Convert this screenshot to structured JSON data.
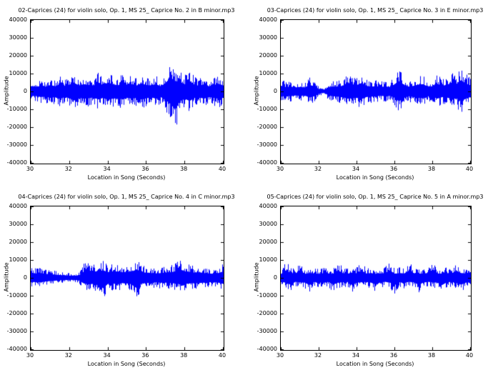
{
  "figure": {
    "background": "#ffffff",
    "axes_edge_color": "#000000",
    "text_color": "#000000"
  },
  "chart_data": [
    {
      "type": "line",
      "title": "02-Caprices (24) for violin solo, Op. 1, MS 25_ Caprice No. 2 in B minor.mp3",
      "xlabel": "Location in Song (Seconds)",
      "ylabel": "Amplitude",
      "xlim": [
        30,
        40
      ],
      "ylim": [
        -40000,
        40000
      ],
      "xticks": [
        30,
        32,
        34,
        36,
        38,
        40
      ],
      "yticks": [
        40000,
        30000,
        20000,
        10000,
        0,
        -10000,
        -20000,
        -30000,
        -40000
      ],
      "xtick_labels": [
        "30",
        "32",
        "34",
        "36",
        "38",
        "40"
      ],
      "ytick_labels": [
        "40000",
        "30000",
        "20000",
        "10000",
        "0",
        "-10000",
        "-20000",
        "-30000",
        "-40000"
      ],
      "grid": false,
      "legend": null,
      "line_color": "#0000ff",
      "envelope": {
        "x_start": 30,
        "x_step": 0.25,
        "pos": [
          6500,
          5500,
          7000,
          6000,
          8000,
          6500,
          9000,
          7000,
          8500,
          10500,
          7500,
          9000,
          8000,
          7500,
          10500,
          8000,
          11000,
          9000,
          7500,
          10000,
          8500,
          9000,
          7500,
          10000,
          8000,
          7500,
          9000,
          6500,
          10500,
          17500,
          13000,
          12000,
          9000,
          13000,
          8500,
          7000,
          9000,
          6500,
          8000,
          9500,
          7500
        ],
        "neg": [
          -6000,
          -5500,
          -7000,
          -6500,
          -8000,
          -7000,
          -9500,
          -7000,
          -8000,
          -10000,
          -8000,
          -9000,
          -8500,
          -7500,
          -10000,
          -8000,
          -10500,
          -9000,
          -8000,
          -10000,
          -8000,
          -9000,
          -8000,
          -10000,
          -8500,
          -7500,
          -9000,
          -7000,
          -11000,
          -15000,
          -23000,
          -12000,
          -9000,
          -12000,
          -8000,
          -7500,
          -9000,
          -7000,
          -8000,
          -9000,
          -8000
        ]
      }
    },
    {
      "type": "line",
      "title": "03-Caprices (24) for violin solo, Op. 1, MS 25_ Caprice No. 3 in E minor.mp3",
      "xlabel": "Location in Song (Seconds)",
      "ylabel": "Amplitude",
      "xlim": [
        30,
        40
      ],
      "ylim": [
        -40000,
        40000
      ],
      "xticks": [
        30,
        32,
        34,
        36,
        38,
        40
      ],
      "yticks": [
        40000,
        30000,
        20000,
        10000,
        0,
        -10000,
        -20000,
        -30000,
        -40000
      ],
      "xtick_labels": [
        "30",
        "32",
        "34",
        "36",
        "38",
        "40"
      ],
      "ytick_labels": [
        "40000",
        "30000",
        "20000",
        "10000",
        "0",
        "-10000",
        "-20000",
        "-30000",
        "-40000"
      ],
      "grid": false,
      "legend": null,
      "line_color": "#0000ff",
      "envelope": {
        "x_start": 30,
        "x_step": 0.25,
        "pos": [
          7000,
          5500,
          6000,
          5000,
          5500,
          5000,
          8000,
          6500,
          3000,
          1200,
          5000,
          6000,
          6000,
          7000,
          11000,
          9000,
          8000,
          10500,
          7000,
          6000,
          6500,
          5500,
          6000,
          5500,
          9000,
          13000,
          8000,
          6000,
          7000,
          8500,
          9000,
          6000,
          6500,
          9500,
          7000,
          8000,
          11000,
          9000,
          14000,
          10000,
          7500
        ],
        "neg": [
          -6500,
          -5500,
          -6000,
          -5000,
          -5500,
          -5000,
          -7500,
          -6000,
          -3000,
          -1200,
          -5000,
          -6000,
          -6500,
          -7000,
          -9000,
          -8500,
          -8000,
          -9500,
          -7000,
          -6500,
          -6000,
          -5500,
          -6000,
          -5500,
          -8000,
          -12000,
          -8000,
          -6000,
          -7000,
          -8000,
          -8500,
          -6000,
          -6500,
          -9000,
          -7000,
          -7500,
          -9500,
          -8500,
          -12500,
          -9000,
          -7000
        ]
      }
    },
    {
      "type": "line",
      "title": "04-Caprices (24) for violin solo, Op. 1, MS 25_ Caprice No. 4 in C minor.mp3",
      "xlabel": "Location in Song (Seconds)",
      "ylabel": "Amplitude",
      "xlim": [
        30,
        40
      ],
      "ylim": [
        -40000,
        40000
      ],
      "xticks": [
        30,
        32,
        34,
        36,
        38,
        40
      ],
      "yticks": [
        40000,
        30000,
        20000,
        10000,
        0,
        -10000,
        -20000,
        -30000,
        -40000
      ],
      "xtick_labels": [
        "30",
        "32",
        "34",
        "36",
        "38",
        "40"
      ],
      "ytick_labels": [
        "40000",
        "30000",
        "20000",
        "10000",
        "0",
        "-10000",
        "-20000",
        "-30000",
        "-40000"
      ],
      "grid": false,
      "legend": null,
      "line_color": "#0000ff",
      "envelope": {
        "x_start": 30,
        "x_step": 0.25,
        "pos": [
          6500,
          5500,
          6000,
          5000,
          4500,
          4000,
          3500,
          3000,
          2800,
          2500,
          3000,
          8000,
          9000,
          8500,
          7500,
          9500,
          7000,
          8000,
          8000,
          7000,
          7500,
          8000,
          10500,
          7000,
          6500,
          6000,
          5500,
          6000,
          6500,
          7000,
          8000,
          10500,
          8000,
          7500,
          6500,
          7000,
          6000,
          5500,
          5000,
          6000,
          8000
        ],
        "neg": [
          -5500,
          -5000,
          -5500,
          -4500,
          -4000,
          -3500,
          -3000,
          -2800,
          -2500,
          -2500,
          -3000,
          -7000,
          -8000,
          -7500,
          -8000,
          -13000,
          -7500,
          -7000,
          -8000,
          -6500,
          -7000,
          -8000,
          -13000,
          -7000,
          -6500,
          -6000,
          -5500,
          -6000,
          -6000,
          -6500,
          -7000,
          -8000,
          -7500,
          -7000,
          -6500,
          -6500,
          -6000,
          -5500,
          -5000,
          -6000,
          -7500
        ]
      }
    },
    {
      "type": "line",
      "title": "05-Caprices (24) for violin solo, Op. 1, MS 25_ Caprice No. 5 in A minor.mp3",
      "xlabel": "Location in Song (Seconds)",
      "ylabel": "Amplitude",
      "xlim": [
        30,
        40
      ],
      "ylim": [
        -40000,
        40000
      ],
      "xticks": [
        30,
        32,
        34,
        36,
        38,
        40
      ],
      "yticks": [
        40000,
        30000,
        20000,
        10000,
        0,
        -10000,
        -20000,
        -30000,
        -40000
      ],
      "xtick_labels": [
        "30",
        "32",
        "34",
        "36",
        "38",
        "40"
      ],
      "ytick_labels": [
        "40000",
        "30000",
        "20000",
        "10000",
        "0",
        "-10000",
        "-20000",
        "-30000",
        "-40000"
      ],
      "grid": false,
      "legend": null,
      "line_color": "#0000ff",
      "envelope": {
        "x_start": 30,
        "x_step": 0.25,
        "pos": [
          5000,
          9500,
          6000,
          5500,
          9000,
          5000,
          6000,
          5500,
          5000,
          6000,
          5500,
          5000,
          9500,
          6000,
          5500,
          5000,
          6000,
          9000,
          5500,
          6000,
          5000,
          5500,
          6000,
          9500,
          5000,
          6000,
          5500,
          9000,
          6000,
          5000,
          5500,
          6000,
          9500,
          5500,
          5000,
          6000,
          5500,
          9000,
          6000,
          5500,
          7000
        ],
        "neg": [
          -5000,
          -6000,
          -8500,
          -5000,
          -5500,
          -6000,
          -9000,
          -5000,
          -5500,
          -6000,
          -5000,
          -8500,
          -6000,
          -5500,
          -5000,
          -9000,
          -6000,
          -5500,
          -5000,
          -6000,
          -8500,
          -5500,
          -5000,
          -6000,
          -9000,
          -5500,
          -6000,
          -5000,
          -5500,
          -8500,
          -6000,
          -5000,
          -5500,
          -6000,
          -9000,
          -5500,
          -5000,
          -6000,
          -8500,
          -6000,
          -5500
        ]
      }
    }
  ]
}
